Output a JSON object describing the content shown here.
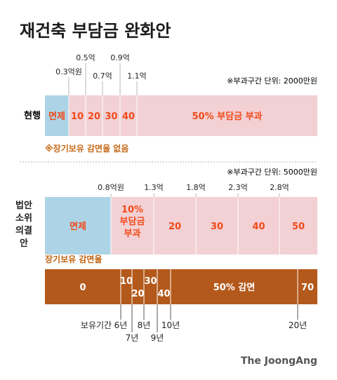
{
  "title": "재건축 부담금 완화안",
  "colors": {
    "exempt": "#acd4e6",
    "tax_band": "#f2d0d3",
    "tax_text": "#f04a1b",
    "band_divider": "#ffffff",
    "tenure_bar": "#b3591b",
    "tenure_label": "#c1620f",
    "note_color": "#c56a16",
    "title_color": "#1a1a1a"
  },
  "credit": "The JoongAng",
  "chart_data": [
    {
      "type": "bar",
      "row_label": "현행",
      "unit_note": "※부과구간 단위: 2000만원",
      "axis_unit": "억",
      "thresholds": [
        {
          "value": 0.3,
          "label": "0.3억원"
        },
        {
          "value": 0.5,
          "label": "0.5억"
        },
        {
          "value": 0.7,
          "label": "0.7억"
        },
        {
          "value": 0.9,
          "label": "0.9억"
        },
        {
          "value": 1.1,
          "label": "1.1억"
        }
      ],
      "segments": [
        {
          "label": "면제",
          "from": 0,
          "to": 0.3,
          "rate": 0,
          "kind": "exempt"
        },
        {
          "label": "10",
          "from": 0.3,
          "to": 0.5,
          "rate": 10,
          "kind": "tax"
        },
        {
          "label": "20",
          "from": 0.5,
          "to": 0.7,
          "rate": 20,
          "kind": "tax"
        },
        {
          "label": "30",
          "from": 0.7,
          "to": 0.9,
          "rate": 30,
          "kind": "tax"
        },
        {
          "label": "40",
          "from": 0.9,
          "to": 1.1,
          "rate": 40,
          "kind": "tax"
        },
        {
          "label": "50% 부담금 부과",
          "from": 1.1,
          "to": null,
          "rate": 50,
          "kind": "tax"
        }
      ],
      "note": "※장기보유 감면율 없음"
    },
    {
      "type": "bar",
      "row_label": "법안 소위 의결안",
      "unit_note": "※부과구간 단위: 5000만원",
      "axis_unit": "억",
      "thresholds": [
        {
          "value": 0.8,
          "label": "0.8억원"
        },
        {
          "value": 1.3,
          "label": "1.3억"
        },
        {
          "value": 1.8,
          "label": "1.8억"
        },
        {
          "value": 2.3,
          "label": "2.3억"
        },
        {
          "value": 2.8,
          "label": "2.8억"
        }
      ],
      "segments": [
        {
          "label": "면제",
          "from": 0,
          "to": 0.8,
          "rate": 0,
          "kind": "exempt"
        },
        {
          "label": "10% 부담금 부과",
          "from": 0.8,
          "to": 1.3,
          "rate": 10,
          "kind": "tax"
        },
        {
          "label": "20",
          "from": 1.3,
          "to": 1.8,
          "rate": 20,
          "kind": "tax"
        },
        {
          "label": "30",
          "from": 1.8,
          "to": 2.3,
          "rate": 30,
          "kind": "tax"
        },
        {
          "label": "40",
          "from": 2.3,
          "to": 2.8,
          "rate": 40,
          "kind": "tax"
        },
        {
          "label": "50",
          "from": 2.8,
          "to": null,
          "rate": 50,
          "kind": "tax"
        }
      ]
    },
    {
      "type": "bar",
      "title": "장기보유 감면율",
      "axis_label": "보유기간",
      "axis_unit": "년",
      "thresholds": [
        {
          "value": 6,
          "label": "6년"
        },
        {
          "value": 7,
          "label": "7년"
        },
        {
          "value": 8,
          "label": "8년"
        },
        {
          "value": 9,
          "label": "9년"
        },
        {
          "value": 10,
          "label": "10년"
        },
        {
          "value": 20,
          "label": "20년"
        }
      ],
      "segments": [
        {
          "label": "0",
          "from": 0,
          "to": 6,
          "rate": 0
        },
        {
          "label": "10",
          "from": 6,
          "to": 7,
          "rate": 10
        },
        {
          "label": "20",
          "from": 7,
          "to": 8,
          "rate": 20
        },
        {
          "label": "30",
          "from": 8,
          "to": 9,
          "rate": 30
        },
        {
          "label": "40",
          "from": 9,
          "to": 10,
          "rate": 40
        },
        {
          "label": "50% 감면",
          "from": 10,
          "to": 20,
          "rate": 50
        },
        {
          "label": "70",
          "from": 20,
          "to": null,
          "rate": 70
        }
      ]
    }
  ]
}
